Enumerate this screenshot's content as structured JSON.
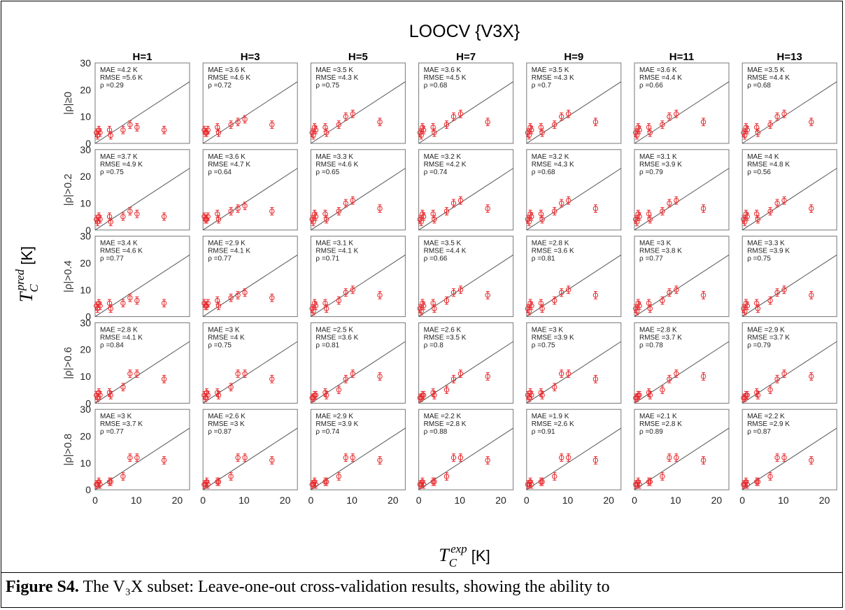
{
  "chart_data": {
    "type": "scatter",
    "title": "LOOCV {V3X}",
    "xlabel": "T_C^exp [K]",
    "ylabel": "T_C^pred [K]",
    "xlim": [
      0,
      23
    ],
    "ylim": [
      0,
      30
    ],
    "xticks": [
      "0",
      "10",
      "20"
    ],
    "yticks": [
      "0",
      "10",
      "20",
      "30"
    ],
    "columns": [
      "H=1",
      "H=3",
      "H=5",
      "H=7",
      "H=9",
      "H=11",
      "H=13"
    ],
    "rows": [
      "|ρ|≥0",
      "|ρ|>0.2",
      "|ρ|>0.4",
      "|ρ|>0.6",
      "|ρ|>0.8"
    ],
    "reference_line": "y = x",
    "marker_color": "#e8262a",
    "line_color": "#555555",
    "x_values": [
      0.3,
      0.6,
      0.9,
      1.2,
      3.5,
      3.8,
      6.8,
      8.5,
      10.2,
      16.8
    ],
    "patterns": [
      [
        4,
        3,
        5,
        4,
        5,
        3,
        5,
        7,
        6,
        5
      ],
      [
        5,
        4,
        4,
        5,
        6,
        4,
        7,
        8,
        9,
        7
      ],
      [
        4,
        3,
        6,
        5,
        6,
        4,
        7,
        10,
        11,
        8
      ],
      [
        3,
        2,
        5,
        4,
        5,
        3,
        6,
        9,
        10,
        8
      ],
      [
        3,
        2,
        4,
        3,
        4,
        3,
        6,
        11,
        11,
        9
      ],
      [
        2,
        2,
        3,
        3,
        4,
        3,
        5,
        9,
        11,
        10
      ],
      [
        2,
        2,
        3,
        2,
        3,
        3,
        5,
        12,
        12,
        11
      ]
    ],
    "panels": [
      [
        {
          "mae": "MAE =4.2 K",
          "rmse": "RMSE =5.6 K",
          "rho": "ρ =0.29",
          "p": 0
        },
        {
          "mae": "MAE =3.6 K",
          "rmse": "RMSE =4.6 K",
          "rho": "ρ =0.72",
          "p": 1
        },
        {
          "mae": "MAE =3.5 K",
          "rmse": "RMSE =4.3 K",
          "rho": "ρ =0.75",
          "p": 2
        },
        {
          "mae": "MAE =3.6 K",
          "rmse": "RMSE =4.5 K",
          "rho": "ρ =0.68",
          "p": 2
        },
        {
          "mae": "MAE =3.5 K",
          "rmse": "RMSE =4.3 K",
          "rho": "ρ =0.7",
          "p": 2
        },
        {
          "mae": "MAE =3.6 K",
          "rmse": "RMSE =4.4 K",
          "rho": "ρ =0.66",
          "p": 2
        },
        {
          "mae": "MAE =3.5 K",
          "rmse": "RMSE =4.4 K",
          "rho": "ρ =0.68",
          "p": 2
        }
      ],
      [
        {
          "mae": "MAE =3.7 K",
          "rmse": "RMSE =4.9 K",
          "rho": "ρ =0.75",
          "p": 0
        },
        {
          "mae": "MAE =3.6 K",
          "rmse": "RMSE =4.7 K",
          "rho": "ρ =0.64",
          "p": 1
        },
        {
          "mae": "MAE =3.3 K",
          "rmse": "RMSE =4.6 K",
          "rho": "ρ =0.65",
          "p": 2
        },
        {
          "mae": "MAE =3.2 K",
          "rmse": "RMSE =4.2 K",
          "rho": "ρ =0.74",
          "p": 2
        },
        {
          "mae": "MAE =3.2 K",
          "rmse": "RMSE =4.3 K",
          "rho": "ρ =0.68",
          "p": 2
        },
        {
          "mae": "MAE =3.1 K",
          "rmse": "RMSE =3.9 K",
          "rho": "ρ =0.79",
          "p": 2
        },
        {
          "mae": "MAE =4 K",
          "rmse": "RMSE =4.8 K",
          "rho": "ρ =0.56",
          "p": 2
        }
      ],
      [
        {
          "mae": "MAE =3.4 K",
          "rmse": "RMSE =4.6 K",
          "rho": "ρ =0.77",
          "p": 0
        },
        {
          "mae": "MAE =2.9 K",
          "rmse": "RMSE =4.1 K",
          "rho": "ρ =0.77",
          "p": 1
        },
        {
          "mae": "MAE =3.1 K",
          "rmse": "RMSE =4.1 K",
          "rho": "ρ =0.71",
          "p": 3
        },
        {
          "mae": "MAE =3.5 K",
          "rmse": "RMSE =4.4 K",
          "rho": "ρ =0.66",
          "p": 3
        },
        {
          "mae": "MAE =2.8 K",
          "rmse": "RMSE =3.6 K",
          "rho": "ρ =0.81",
          "p": 3
        },
        {
          "mae": "MAE =3 K",
          "rmse": "RMSE =3.8 K",
          "rho": "ρ =0.77",
          "p": 3
        },
        {
          "mae": "MAE =3.3 K",
          "rmse": "RMSE =3.9 K",
          "rho": "ρ =0.75",
          "p": 3
        }
      ],
      [
        {
          "mae": "MAE =2.8 K",
          "rmse": "RMSE =4.1 K",
          "rho": "ρ =0.84",
          "p": 4
        },
        {
          "mae": "MAE =3 K",
          "rmse": "RMSE =4 K",
          "rho": "ρ =0.75",
          "p": 4
        },
        {
          "mae": "MAE =2.5 K",
          "rmse": "RMSE =3.6 K",
          "rho": "ρ =0.81",
          "p": 5
        },
        {
          "mae": "MAE =2.6 K",
          "rmse": "RMSE =3.5 K",
          "rho": "ρ =0.8",
          "p": 5
        },
        {
          "mae": "MAE =3 K",
          "rmse": "RMSE =3.9 K",
          "rho": "ρ =0.75",
          "p": 4
        },
        {
          "mae": "MAE =2.8 K",
          "rmse": "RMSE =3.7 K",
          "rho": "ρ =0.78",
          "p": 5
        },
        {
          "mae": "MAE =2.9 K",
          "rmse": "RMSE =3.7 K",
          "rho": "ρ =0.79",
          "p": 5
        }
      ],
      [
        {
          "mae": "MAE =3 K",
          "rmse": "RMSE =3.7 K",
          "rho": "ρ =0.77",
          "p": 6
        },
        {
          "mae": "MAE =2.6 K",
          "rmse": "RMSE =3 K",
          "rho": "ρ =0.87",
          "p": 6
        },
        {
          "mae": "MAE =2.9 K",
          "rmse": "RMSE =3.9 K",
          "rho": "ρ =0.74",
          "p": 6
        },
        {
          "mae": "MAE =2.2 K",
          "rmse": "RMSE =2.8 K",
          "rho": "ρ =0.88",
          "p": 6
        },
        {
          "mae": "MAE =1.9 K",
          "rmse": "RMSE =2.6 K",
          "rho": "ρ =0.91",
          "p": 6
        },
        {
          "mae": "MAE =2.1 K",
          "rmse": "RMSE =2.8 K",
          "rho": "ρ =0.89",
          "p": 6
        },
        {
          "mae": "MAE =2.2 K",
          "rmse": "RMSE =2.9 K",
          "rho": "ρ =0.87",
          "p": 6
        }
      ]
    ]
  },
  "caption": {
    "label": "Figure S4.",
    "text": " The V₃X subset: Leave-one-out cross-validation results, showing the ability to"
  }
}
